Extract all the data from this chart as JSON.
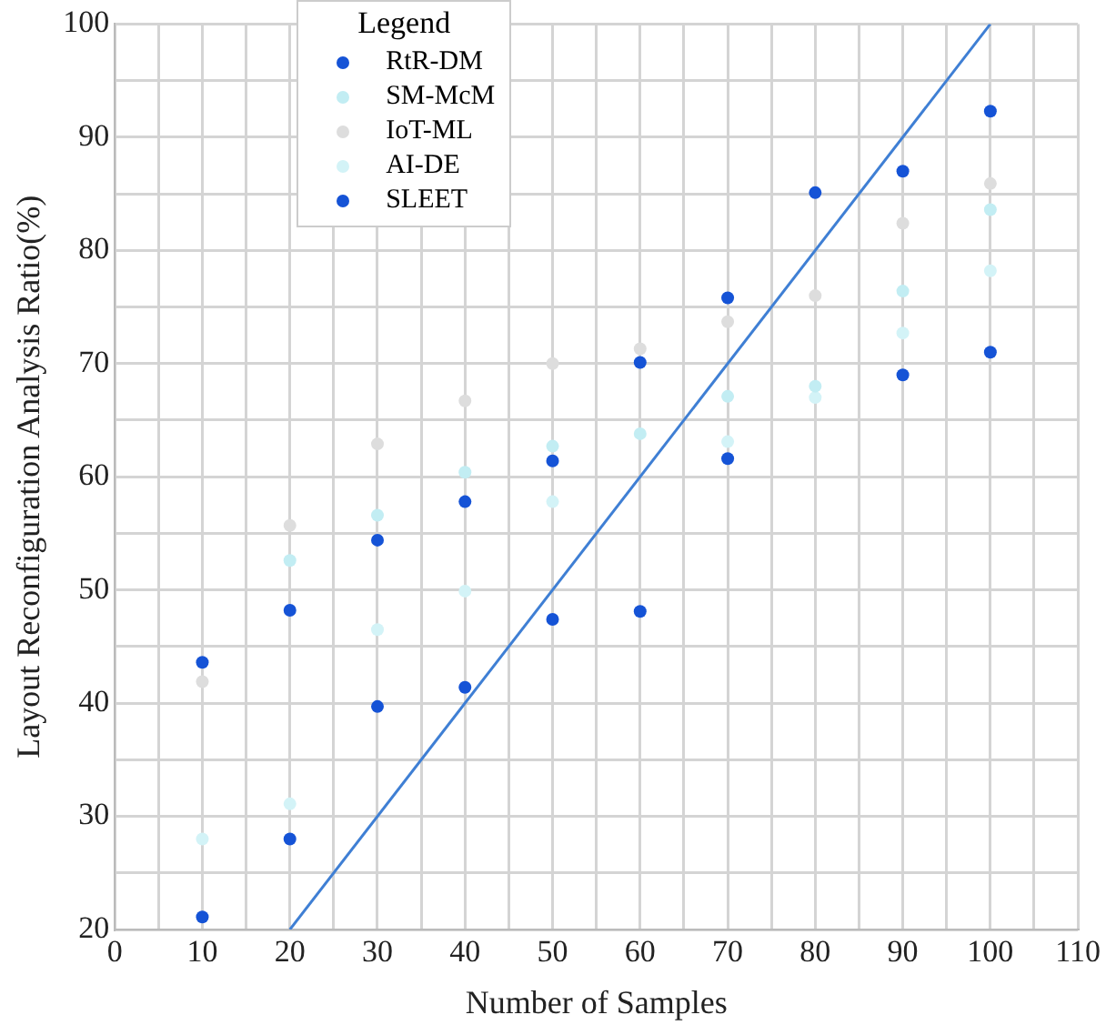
{
  "chart_data": {
    "type": "scatter",
    "xlabel": "Number of Samples",
    "ylabel": "Layout Reconfiguration Analysis Ratio(%)",
    "legend_title": "Legend",
    "legend": "top left",
    "grid": true,
    "marker": "circle",
    "x": [
      10,
      20,
      30,
      40,
      50,
      60,
      70,
      80,
      90,
      100
    ],
    "xlim": [
      0,
      110
    ],
    "xticks": [
      0,
      {
        "value": 5,
        "label": null
      },
      10,
      {
        "value": 15,
        "label": null
      },
      20,
      {
        "value": 25,
        "label": null
      },
      30,
      {
        "value": 35,
        "label": null
      },
      40,
      {
        "value": 45,
        "label": null
      },
      50,
      {
        "value": 55,
        "label": null
      },
      60,
      {
        "value": 65,
        "label": null
      },
      70,
      {
        "value": 75,
        "label": null
      },
      80,
      {
        "value": 85,
        "label": null
      },
      90,
      {
        "value": 95,
        "label": null
      },
      100,
      {
        "value": 105,
        "label": null
      },
      110
    ],
    "ylim": [
      20,
      100
    ],
    "yticks": [
      20,
      {
        "value": 25,
        "label": null
      },
      30,
      {
        "value": 35,
        "label": null
      },
      40,
      {
        "value": 45,
        "label": null
      },
      50,
      {
        "value": 55,
        "label": null
      },
      60,
      {
        "value": 65,
        "label": null
      },
      70,
      {
        "value": 75,
        "label": null
      },
      80,
      {
        "value": 85,
        "label": null
      },
      90,
      {
        "value": 95,
        "label": null
      },
      100
    ],
    "series": [
      {
        "name": "RtR-DM",
        "color": "#1553d6",
        "values": [
          21.1,
          28,
          39.7,
          41.4,
          47.4,
          48.1,
          61.6,
          null,
          69,
          71
        ]
      },
      {
        "name": "SM-McM",
        "color": "#c2edf3",
        "values": [
          null,
          52.6,
          56.6,
          60.4,
          62.7,
          63.8,
          67.1,
          68,
          76.4,
          83.6
        ]
      },
      {
        "name": "IoT-ML",
        "color": "#dddddd",
        "values": [
          41.9,
          55.7,
          62.9,
          66.7,
          70,
          71.3,
          73.7,
          76,
          82.4,
          85.9
        ]
      },
      {
        "name": "AI-DE",
        "color": "#d3f3f7",
        "values": [
          28,
          31.1,
          46.5,
          49.9,
          57.8,
          null,
          63.1,
          67,
          72.7,
          78.2
        ]
      },
      {
        "name": "SLEET",
        "color": "#1553d6",
        "values": [
          43.6,
          48.2,
          54.4,
          57.8,
          61.4,
          70.1,
          75.8,
          85.1,
          87,
          92.3
        ]
      },
      {
        "type": "line",
        "color": "#3f7fd4",
        "x": [
          20,
          100
        ],
        "values": [
          20,
          100
        ],
        "marker": "none",
        "line_style": "solid"
      }
    ]
  }
}
